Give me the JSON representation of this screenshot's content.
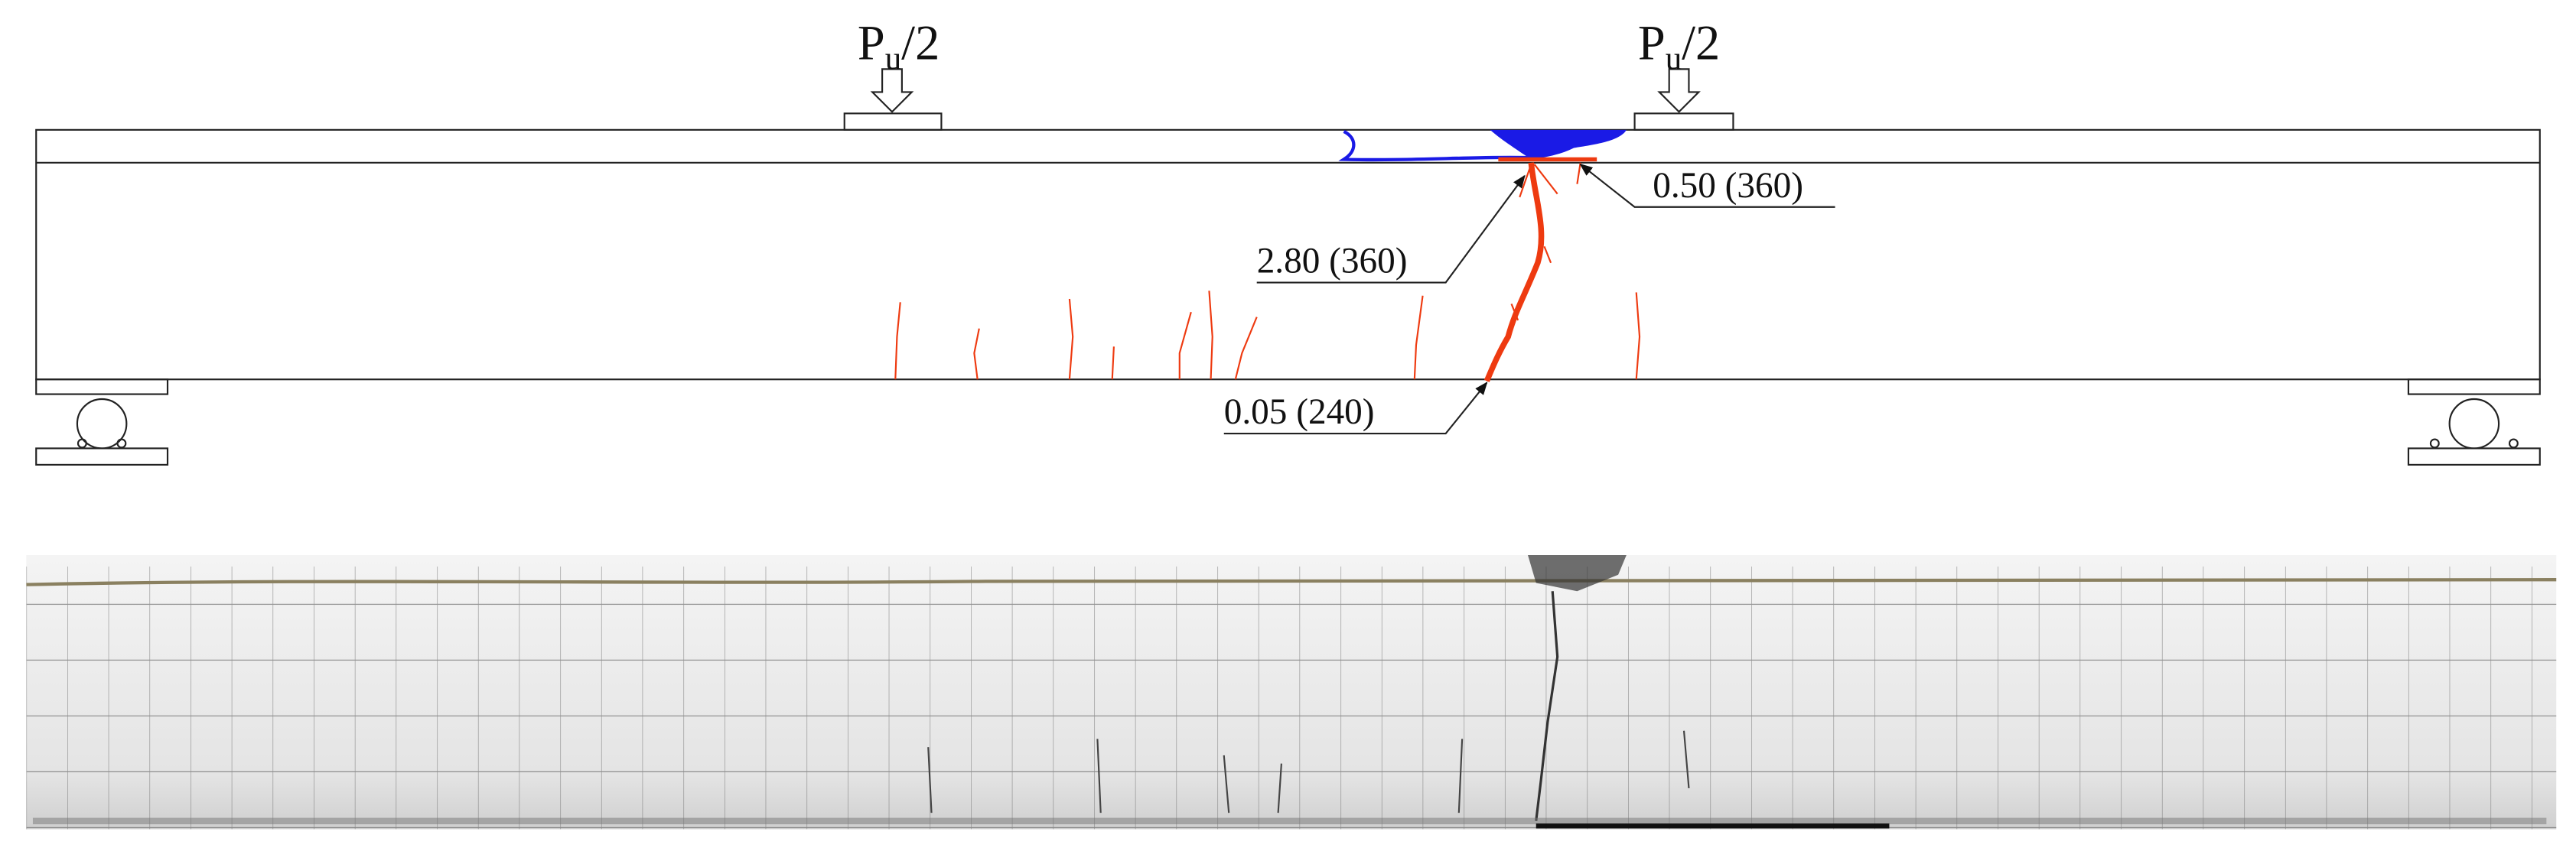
{
  "loads": [
    {
      "symbol": "P",
      "subscript": "u",
      "suffix": "/2"
    },
    {
      "symbol": "P",
      "subscript": "u",
      "suffix": "/2"
    }
  ],
  "crack_labels": [
    "0.50 (360)",
    "2.80 (360)",
    "0.05 (240)"
  ]
}
